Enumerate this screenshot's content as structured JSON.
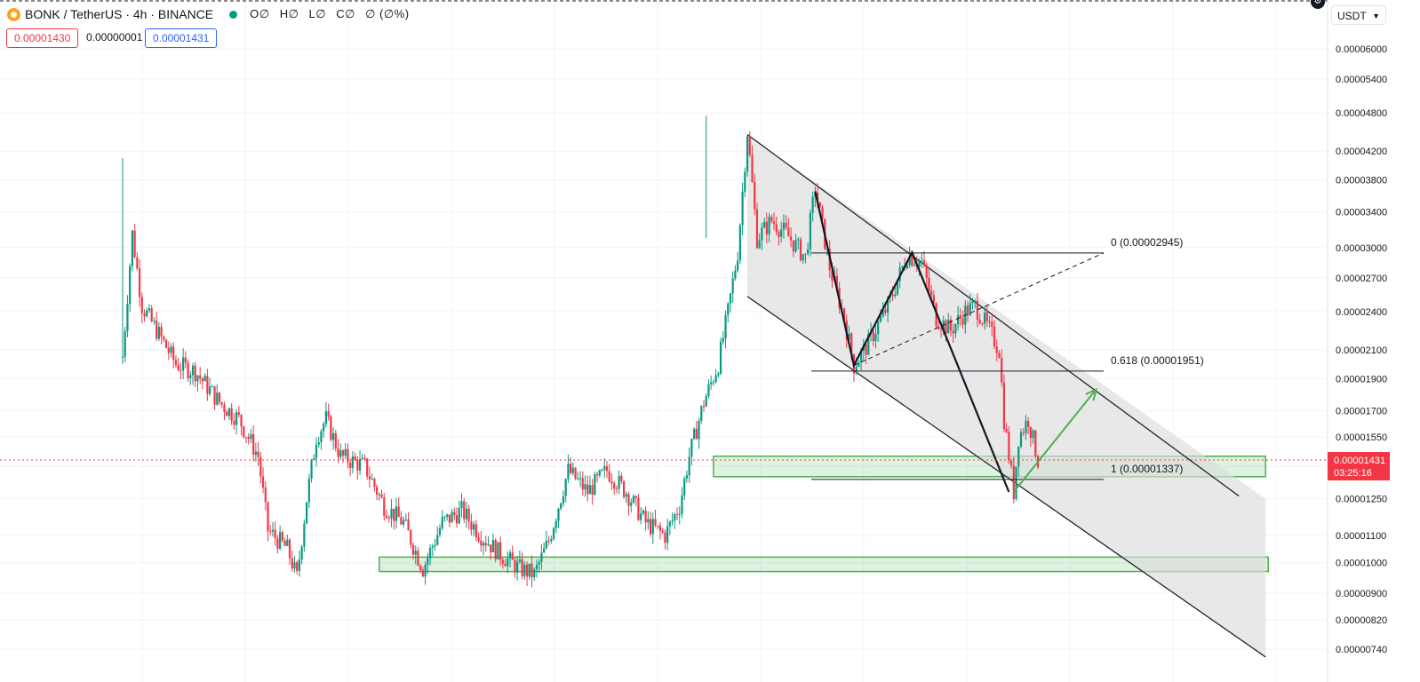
{
  "header": {
    "title": "BONK / TetherUS · 4h · BINANCE",
    "ohlc": {
      "open": "O∅",
      "high": "H∅",
      "low": "L∅",
      "close": "C∅",
      "change": "∅ (∅%)"
    },
    "bid": "0.00001430",
    "spread": "0.00000001",
    "ask": "0.00001431"
  },
  "axis": {
    "currency": "USDT"
  },
  "chart_data": {
    "type": "candlestick",
    "symbol": "BONK / TetherUS",
    "interval": "4h",
    "exchange": "BINANCE",
    "y_scale": "log",
    "ylim": [
      7.1e-06,
      6.4e-06
    ],
    "y_ticks": [
      "0.00006000",
      "0.00005400",
      "0.00004800",
      "0.00004200",
      "0.00003800",
      "0.00003400",
      "0.00003000",
      "0.00002700",
      "0.00002400",
      "0.00002100",
      "0.00001900",
      "0.00001700",
      "0.00001550",
      "0.00001400",
      "0.00001250",
      "0.00001100",
      "0.00001000",
      "0.00000900",
      "0.00000820",
      "0.00000740"
    ],
    "y_tick_values": [
      6e-05,
      5.4e-05,
      4.8e-05,
      4.2e-05,
      3.8e-05,
      3.4e-05,
      3e-05,
      2.7e-05,
      2.4e-05,
      2.1e-05,
      1.9e-05,
      1.7e-05,
      1.55e-05,
      1.4e-05,
      1.25e-05,
      1.1e-05,
      1e-05,
      9e-06,
      8.2e-06,
      7.4e-06
    ],
    "current_price": {
      "value": 1.431e-05,
      "label": "0.00001431",
      "countdown": "03:25:16",
      "color": "#f23645"
    },
    "colors": {
      "up": "#089981",
      "down": "#f23645"
    },
    "price_path": [
      [
        0,
        2.05e-05
      ],
      [
        2,
        3.15e-05
      ],
      [
        4,
        2.45e-05
      ],
      [
        7,
        2.25e-05
      ],
      [
        11,
        2e-05
      ],
      [
        15,
        1.95e-05
      ],
      [
        20,
        1.75e-05
      ],
      [
        24,
        1.65e-05
      ],
      [
        28,
        1.45e-05
      ],
      [
        30,
        1.12e-05
      ],
      [
        34,
        1.05e-05
      ],
      [
        36,
        9.5e-06
      ],
      [
        38,
        1.25e-05
      ],
      [
        40,
        1.55e-05
      ],
      [
        42,
        1.65e-05
      ],
      [
        45,
        1.45e-05
      ],
      [
        50,
        1.4e-05
      ],
      [
        54,
        1.22e-05
      ],
      [
        58,
        1.15e-05
      ],
      [
        62,
        9.8e-06
      ],
      [
        66,
        1.15e-05
      ],
      [
        70,
        1.2e-05
      ],
      [
        74,
        1.1e-05
      ],
      [
        78,
        1.03e-05
      ],
      [
        82,
        9.8e-06
      ],
      [
        85,
        9.6e-06
      ],
      [
        88,
        1.08e-05
      ],
      [
        92,
        1.38e-05
      ],
      [
        96,
        1.28e-05
      ],
      [
        100,
        1.38e-05
      ],
      [
        104,
        1.28e-05
      ],
      [
        108,
        1.15e-05
      ],
      [
        112,
        1.1e-05
      ],
      [
        115,
        1.22e-05
      ],
      [
        117,
        1.45e-05
      ],
      [
        120,
        1.75e-05
      ],
      [
        123,
        2e-05
      ],
      [
        125,
        2.4e-05
      ],
      [
        127,
        2.95e-05
      ],
      [
        129,
        4.5e-05
      ],
      [
        131,
        3.1e-05
      ],
      [
        134,
        3.3e-05
      ],
      [
        137,
        3.15e-05
      ],
      [
        141,
        2.9e-05
      ],
      [
        143,
        3.7e-05
      ],
      [
        146,
        2.8e-05
      ],
      [
        149,
        2.35e-05
      ],
      [
        151,
        1.99e-05
      ],
      [
        154,
        2.15e-05
      ],
      [
        158,
        2.45e-05
      ],
      [
        162,
        2.92e-05
      ],
      [
        165,
        2.85e-05
      ],
      [
        168,
        2.35e-05
      ],
      [
        171,
        2.25e-05
      ],
      [
        174,
        2.4e-05
      ],
      [
        176,
        2.45e-05
      ],
      [
        179,
        2.25e-05
      ],
      [
        181,
        2.1e-05
      ],
      [
        182,
        1.65e-05
      ],
      [
        184,
        1.28e-05
      ],
      [
        185,
        1.55e-05
      ],
      [
        187,
        1.65e-05
      ],
      [
        189,
        1.43e-05
      ]
    ],
    "channel": {
      "upper": [
        [
          129,
          4.45e-05
        ],
        [
          236,
          1.25e-05
        ]
      ],
      "lower": [
        [
          129,
          2.53e-05
        ],
        [
          236,
          7.2e-06
        ]
      ]
    },
    "support_zones": [
      {
        "from": [
          122,
          236
        ],
        "price_range": [
          1.35e-05,
          1.45e-05
        ]
      },
      {
        "from": [
          53,
          236
        ],
        "price_range": [
          9.7e-06,
          1.02e-05
        ]
      }
    ],
    "fibonacci": [
      {
        "level": "0",
        "value": 2.945e-05,
        "label": "0 (0.00002945)"
      },
      {
        "level": "0.618",
        "value": 1.951e-05,
        "label": "0.618 (0.00001951)"
      },
      {
        "level": "1",
        "value": 1.337e-05,
        "label": "1 (0.00001337)"
      }
    ],
    "zigzag": [
      [
        143,
        3.65e-05
      ],
      [
        151,
        1.99e-05
      ],
      [
        163,
        2.95e-05
      ],
      [
        183,
        1.28e-05
      ]
    ],
    "projection_arrow": [
      [
        184,
        1.28e-05
      ],
      [
        201,
        1.83e-05
      ]
    ],
    "grid": true
  }
}
